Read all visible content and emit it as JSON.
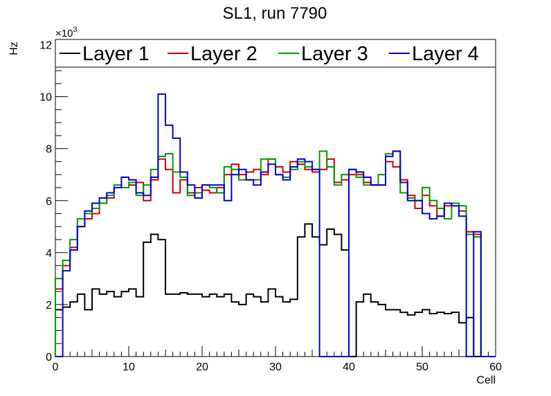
{
  "chart_data": {
    "type": "line",
    "step": true,
    "title": "SL1, run 7790",
    "xlabel": "Cell",
    "ylabel": "Hz",
    "y_multiplier": {
      "base": "×10",
      "exponent": "3"
    },
    "xlim": [
      0,
      60
    ],
    "ylim": [
      0,
      12.2
    ],
    "x_ticks": [
      0,
      10,
      20,
      30,
      40,
      50,
      60
    ],
    "y_ticks": [
      0,
      2,
      4,
      6,
      8,
      10,
      12
    ],
    "x_tick_labels": [
      "0",
      "10",
      "20",
      "30",
      "40",
      "50",
      "60"
    ],
    "y_tick_labels": [
      "0",
      "2",
      "4",
      "6",
      "8",
      "10",
      "12"
    ],
    "bin_width": 1,
    "legend_position": "top",
    "series": [
      {
        "name": "Layer 1",
        "color": "#000000",
        "values": [
          1.8,
          1.9,
          2.1,
          2.4,
          1.8,
          2.6,
          2.4,
          2.5,
          2.3,
          2.5,
          2.6,
          2.3,
          4.4,
          4.7,
          4.5,
          2.4,
          2.4,
          2.45,
          2.4,
          2.4,
          2.3,
          2.4,
          2.3,
          2.4,
          2.1,
          2.0,
          2.4,
          2.3,
          2.1,
          2.6,
          2.3,
          2.1,
          2.2,
          4.6,
          5.1,
          4.6,
          4.3,
          4.9,
          4.7,
          4.1,
          0,
          2.1,
          2.4,
          2.1,
          2.0,
          1.8,
          1.8,
          1.7,
          1.6,
          1.7,
          1.8,
          1.65,
          1.7,
          1.65,
          1.7,
          1.3,
          1.5,
          0,
          0,
          0
        ]
      },
      {
        "name": "Layer 2",
        "color": "#cc0000",
        "values": [
          2.6,
          3.5,
          4.2,
          5.0,
          5.3,
          5.5,
          5.9,
          6.1,
          6.5,
          6.5,
          6.6,
          6.7,
          6.0,
          6.8,
          7.6,
          7.2,
          6.3,
          6.8,
          6.3,
          6.5,
          6.4,
          6.3,
          6.5,
          7.0,
          7.4,
          7.0,
          7.1,
          7.2,
          7.0,
          7.6,
          7.3,
          7.1,
          7.5,
          7.4,
          7.2,
          7.1,
          7.2,
          7.6,
          6.7,
          6.8,
          7.0,
          7.0,
          6.7,
          6.6,
          6.6,
          7.5,
          7.3,
          6.8,
          6.2,
          5.7,
          6.2,
          5.8,
          5.4,
          5.8,
          5.9,
          5.6,
          4.8,
          4.7,
          0,
          0
        ]
      },
      {
        "name": "Layer 3",
        "color": "#009900",
        "values": [
          3.0,
          3.7,
          4.5,
          5.3,
          5.5,
          5.7,
          5.9,
          6.2,
          6.6,
          6.5,
          6.7,
          6.2,
          6.6,
          7.2,
          7.7,
          7.8,
          7.1,
          6.9,
          6.2,
          6.3,
          6.6,
          6.5,
          6.3,
          7.3,
          7.2,
          6.8,
          6.8,
          6.8,
          7.6,
          7.6,
          7.0,
          6.9,
          7.2,
          7.5,
          7.3,
          7.2,
          7.9,
          7.3,
          6.6,
          7.0,
          7.2,
          6.9,
          6.6,
          6.6,
          7.0,
          7.8,
          7.9,
          6.3,
          6.1,
          6.0,
          6.5,
          6.0,
          5.7,
          5.3,
          5.9,
          5.8,
          4.7,
          4.6,
          0,
          0
        ]
      },
      {
        "name": "Layer 4",
        "color": "#0000cc",
        "values": [
          0,
          3.3,
          4.1,
          5.0,
          5.6,
          5.9,
          6.1,
          6.3,
          6.5,
          6.9,
          6.8,
          6.3,
          6.2,
          6.9,
          10.1,
          8.9,
          8.4,
          7.1,
          6.6,
          6.1,
          6.6,
          6.6,
          6.6,
          6.0,
          7.0,
          7.2,
          6.8,
          6.6,
          7.1,
          7.4,
          7.0,
          6.8,
          7.3,
          7.6,
          7.5,
          7.2,
          0,
          0,
          0,
          0,
          7.2,
          7.1,
          6.9,
          6.6,
          6.6,
          7.7,
          7.9,
          6.7,
          6.0,
          6.0,
          5.5,
          5.3,
          5.4,
          5.9,
          5.8,
          5.4,
          0,
          4.8,
          0,
          0
        ]
      }
    ]
  }
}
